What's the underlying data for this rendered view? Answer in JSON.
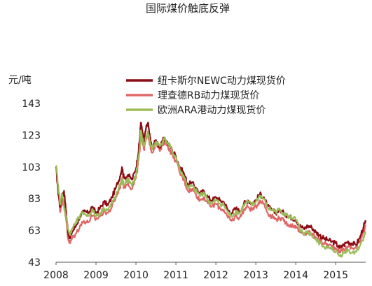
{
  "chart_data": {
    "type": "line",
    "title": "国际煤价触底反弹",
    "ylabel": "元/吨",
    "xlabel": "",
    "ylim": [
      43,
      143
    ],
    "y_ticks": [
      43,
      63,
      83,
      103,
      123,
      143
    ],
    "xlim": [
      2008.0,
      2015.75
    ],
    "x_ticks": [
      2008,
      2009,
      2010,
      2011,
      2012,
      2013,
      2014,
      2015
    ],
    "x_tick_labels": [
      "2008",
      "2009",
      "2010",
      "2011",
      "2012",
      "2013",
      "2014",
      "2015"
    ],
    "grid": false,
    "legend_position": "top-right",
    "series": [
      {
        "name": "纽卡斯尔NEWC动力煤现货价",
        "color": "#8B0C14",
        "points": [
          [
            2008.0,
            103
          ],
          [
            2008.05,
            88
          ],
          [
            2008.1,
            78
          ],
          [
            2008.15,
            84
          ],
          [
            2008.2,
            88
          ],
          [
            2008.25,
            75
          ],
          [
            2008.3,
            62
          ],
          [
            2008.35,
            58
          ],
          [
            2008.4,
            62
          ],
          [
            2008.5,
            66
          ],
          [
            2008.6,
            72
          ],
          [
            2008.7,
            75
          ],
          [
            2008.8,
            74
          ],
          [
            2008.9,
            78
          ],
          [
            2009.0,
            74
          ],
          [
            2009.1,
            77
          ],
          [
            2009.2,
            81
          ],
          [
            2009.3,
            79
          ],
          [
            2009.4,
            84
          ],
          [
            2009.5,
            90
          ],
          [
            2009.6,
            97
          ],
          [
            2009.65,
            103
          ],
          [
            2009.7,
            96
          ],
          [
            2009.8,
            98
          ],
          [
            2009.9,
            95
          ],
          [
            2010.0,
            102
          ],
          [
            2010.05,
            110
          ],
          [
            2010.1,
            122
          ],
          [
            2010.12,
            131
          ],
          [
            2010.15,
            127
          ],
          [
            2010.2,
            119
          ],
          [
            2010.25,
            127
          ],
          [
            2010.3,
            131
          ],
          [
            2010.35,
            122
          ],
          [
            2010.4,
            115
          ],
          [
            2010.5,
            120
          ],
          [
            2010.6,
            115
          ],
          [
            2010.7,
            121
          ],
          [
            2010.8,
            118
          ],
          [
            2010.9,
            114
          ],
          [
            2011.0,
            110
          ],
          [
            2011.1,
            103
          ],
          [
            2011.2,
            99
          ],
          [
            2011.3,
            92
          ],
          [
            2011.4,
            93
          ],
          [
            2011.5,
            90
          ],
          [
            2011.6,
            86
          ],
          [
            2011.7,
            88
          ],
          [
            2011.8,
            84
          ],
          [
            2011.9,
            82
          ],
          [
            2012.0,
            84
          ],
          [
            2012.1,
            82
          ],
          [
            2012.2,
            81
          ],
          [
            2012.3,
            76
          ],
          [
            2012.4,
            74
          ],
          [
            2012.5,
            77
          ],
          [
            2012.6,
            75
          ],
          [
            2012.7,
            80
          ],
          [
            2012.8,
            82
          ],
          [
            2012.9,
            80
          ],
          [
            2013.0,
            82
          ],
          [
            2013.1,
            86
          ],
          [
            2013.2,
            84
          ],
          [
            2013.3,
            78
          ],
          [
            2013.4,
            76
          ],
          [
            2013.5,
            74
          ],
          [
            2013.6,
            76
          ],
          [
            2013.7,
            74
          ],
          [
            2013.8,
            72
          ],
          [
            2013.9,
            71
          ],
          [
            2014.0,
            70
          ],
          [
            2014.1,
            66
          ],
          [
            2014.2,
            64
          ],
          [
            2014.3,
            66
          ],
          [
            2014.4,
            65
          ],
          [
            2014.5,
            62
          ],
          [
            2014.6,
            60
          ],
          [
            2014.7,
            58
          ],
          [
            2014.8,
            57
          ],
          [
            2014.9,
            56
          ],
          [
            2015.0,
            55
          ],
          [
            2015.1,
            52
          ],
          [
            2015.2,
            54
          ],
          [
            2015.3,
            56
          ],
          [
            2015.4,
            55
          ],
          [
            2015.5,
            54
          ],
          [
            2015.6,
            58
          ],
          [
            2015.7,
            66
          ],
          [
            2015.75,
            68
          ]
        ]
      },
      {
        "name": "理查德RB动力煤现货价",
        "color": "#E06666",
        "points": [
          [
            2008.0,
            103
          ],
          [
            2008.05,
            90
          ],
          [
            2008.1,
            75
          ],
          [
            2008.15,
            81
          ],
          [
            2008.2,
            80
          ],
          [
            2008.25,
            70
          ],
          [
            2008.3,
            58
          ],
          [
            2008.35,
            55
          ],
          [
            2008.4,
            58
          ],
          [
            2008.5,
            61
          ],
          [
            2008.6,
            66
          ],
          [
            2008.7,
            69
          ],
          [
            2008.8,
            68
          ],
          [
            2008.9,
            72
          ],
          [
            2009.0,
            70
          ],
          [
            2009.1,
            72
          ],
          [
            2009.2,
            75
          ],
          [
            2009.3,
            74
          ],
          [
            2009.4,
            78
          ],
          [
            2009.5,
            84
          ],
          [
            2009.6,
            90
          ],
          [
            2009.65,
            96
          ],
          [
            2009.7,
            90
          ],
          [
            2009.8,
            93
          ],
          [
            2009.9,
            89
          ],
          [
            2010.0,
            96
          ],
          [
            2010.05,
            104
          ],
          [
            2010.1,
            114
          ],
          [
            2010.12,
            124
          ],
          [
            2010.15,
            120
          ],
          [
            2010.2,
            114
          ],
          [
            2010.25,
            120
          ],
          [
            2010.3,
            124
          ],
          [
            2010.35,
            117
          ],
          [
            2010.4,
            112
          ],
          [
            2010.5,
            118
          ],
          [
            2010.6,
            113
          ],
          [
            2010.7,
            119
          ],
          [
            2010.8,
            116
          ],
          [
            2010.9,
            111
          ],
          [
            2011.0,
            107
          ],
          [
            2011.1,
            99
          ],
          [
            2011.2,
            95
          ],
          [
            2011.3,
            88
          ],
          [
            2011.4,
            89
          ],
          [
            2011.5,
            86
          ],
          [
            2011.6,
            82
          ],
          [
            2011.7,
            84
          ],
          [
            2011.8,
            80
          ],
          [
            2011.9,
            78
          ],
          [
            2012.0,
            80
          ],
          [
            2012.1,
            77
          ],
          [
            2012.2,
            76
          ],
          [
            2012.3,
            71
          ],
          [
            2012.4,
            69
          ],
          [
            2012.5,
            72
          ],
          [
            2012.6,
            71
          ],
          [
            2012.7,
            76
          ],
          [
            2012.8,
            78
          ],
          [
            2012.9,
            76
          ],
          [
            2013.0,
            78
          ],
          [
            2013.1,
            82
          ],
          [
            2013.2,
            80
          ],
          [
            2013.3,
            74
          ],
          [
            2013.4,
            72
          ],
          [
            2013.5,
            70
          ],
          [
            2013.6,
            71
          ],
          [
            2013.7,
            69
          ],
          [
            2013.8,
            67
          ],
          [
            2013.9,
            66
          ],
          [
            2014.0,
            66
          ],
          [
            2014.1,
            62
          ],
          [
            2014.2,
            60
          ],
          [
            2014.3,
            62
          ],
          [
            2014.4,
            61
          ],
          [
            2014.5,
            59
          ],
          [
            2014.6,
            57
          ],
          [
            2014.7,
            55
          ],
          [
            2014.8,
            54
          ],
          [
            2014.9,
            53
          ],
          [
            2015.0,
            52
          ],
          [
            2015.1,
            50
          ],
          [
            2015.2,
            51
          ],
          [
            2015.3,
            53
          ],
          [
            2015.4,
            52
          ],
          [
            2015.5,
            52
          ],
          [
            2015.6,
            56
          ],
          [
            2015.7,
            63
          ],
          [
            2015.75,
            66
          ]
        ]
      },
      {
        "name": "欧洲ARA港动力煤现货价",
        "color": "#9BBB59",
        "points": [
          [
            2008.0,
            104
          ],
          [
            2008.05,
            92
          ],
          [
            2008.1,
            80
          ],
          [
            2008.15,
            86
          ],
          [
            2008.2,
            78
          ],
          [
            2008.25,
            72
          ],
          [
            2008.3,
            64
          ],
          [
            2008.35,
            60
          ],
          [
            2008.4,
            64
          ],
          [
            2008.5,
            68
          ],
          [
            2008.6,
            72
          ],
          [
            2008.7,
            74
          ],
          [
            2008.8,
            72
          ],
          [
            2008.9,
            76
          ],
          [
            2009.0,
            72
          ],
          [
            2009.1,
            74
          ],
          [
            2009.2,
            77
          ],
          [
            2009.3,
            76
          ],
          [
            2009.4,
            80
          ],
          [
            2009.5,
            85
          ],
          [
            2009.6,
            91
          ],
          [
            2009.65,
            95
          ],
          [
            2009.7,
            92
          ],
          [
            2009.8,
            95
          ],
          [
            2009.9,
            91
          ],
          [
            2010.0,
            98
          ],
          [
            2010.05,
            106
          ],
          [
            2010.1,
            116
          ],
          [
            2010.12,
            126
          ],
          [
            2010.15,
            122
          ],
          [
            2010.2,
            116
          ],
          [
            2010.25,
            121
          ],
          [
            2010.3,
            125
          ],
          [
            2010.35,
            119
          ],
          [
            2010.4,
            114
          ],
          [
            2010.5,
            119
          ],
          [
            2010.6,
            116
          ],
          [
            2010.7,
            121
          ],
          [
            2010.8,
            118
          ],
          [
            2010.9,
            113
          ],
          [
            2011.0,
            109
          ],
          [
            2011.1,
            101
          ],
          [
            2011.2,
            97
          ],
          [
            2011.3,
            90
          ],
          [
            2011.4,
            91
          ],
          [
            2011.5,
            88
          ],
          [
            2011.6,
            85
          ],
          [
            2011.7,
            87
          ],
          [
            2011.8,
            82
          ],
          [
            2011.9,
            80
          ],
          [
            2012.0,
            82
          ],
          [
            2012.1,
            80
          ],
          [
            2012.2,
            79
          ],
          [
            2012.3,
            74
          ],
          [
            2012.4,
            72
          ],
          [
            2012.5,
            75
          ],
          [
            2012.6,
            74
          ],
          [
            2012.7,
            79
          ],
          [
            2012.8,
            81
          ],
          [
            2012.9,
            79
          ],
          [
            2013.0,
            81
          ],
          [
            2013.1,
            85
          ],
          [
            2013.2,
            83
          ],
          [
            2013.3,
            77
          ],
          [
            2013.4,
            76
          ],
          [
            2013.5,
            75
          ],
          [
            2013.6,
            76
          ],
          [
            2013.7,
            74
          ],
          [
            2013.8,
            72
          ],
          [
            2013.9,
            71
          ],
          [
            2014.0,
            70
          ],
          [
            2014.1,
            64
          ],
          [
            2014.2,
            60
          ],
          [
            2014.3,
            62
          ],
          [
            2014.4,
            60
          ],
          [
            2014.5,
            57
          ],
          [
            2014.6,
            55
          ],
          [
            2014.7,
            53
          ],
          [
            2014.8,
            52
          ],
          [
            2014.9,
            51
          ],
          [
            2015.0,
            50
          ],
          [
            2015.1,
            47
          ],
          [
            2015.2,
            49
          ],
          [
            2015.3,
            51
          ],
          [
            2015.4,
            49
          ],
          [
            2015.5,
            50
          ],
          [
            2015.6,
            53
          ],
          [
            2015.7,
            59
          ],
          [
            2015.75,
            62
          ]
        ]
      }
    ]
  }
}
